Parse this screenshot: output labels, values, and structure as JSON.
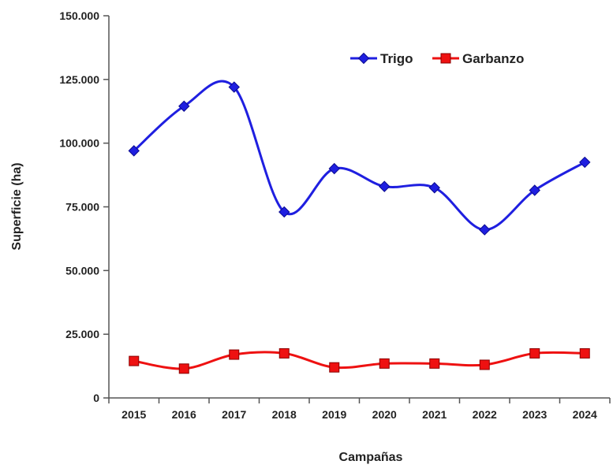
{
  "chart_data": {
    "type": "line",
    "title": "",
    "xlabel": "Campañas",
    "ylabel": "Superficie (ha)",
    "categories": [
      "2015",
      "2016",
      "2017",
      "2018",
      "2019",
      "2020",
      "2021",
      "2022",
      "2023",
      "2024"
    ],
    "ylim": [
      0,
      150000
    ],
    "yticks": [
      0,
      25000,
      50000,
      75000,
      100000,
      125000,
      150000
    ],
    "ytick_labels": [
      "0",
      "25.000",
      "50.000",
      "75.000",
      "100.000",
      "125.000",
      "150.000"
    ],
    "grid": false,
    "legend_position": "top-right",
    "smooth": true,
    "series": [
      {
        "name": "Trigo",
        "color": "#1f1fe0",
        "marker": "diamond",
        "values": [
          97000,
          114500,
          122000,
          73000,
          90000,
          83000,
          82500,
          66000,
          81500,
          92500
        ]
      },
      {
        "name": "Garbanzo",
        "color": "#ee1111",
        "marker": "square",
        "values": [
          14500,
          11500,
          17000,
          17500,
          12000,
          13500,
          13500,
          13000,
          17500,
          17500
        ]
      }
    ]
  }
}
